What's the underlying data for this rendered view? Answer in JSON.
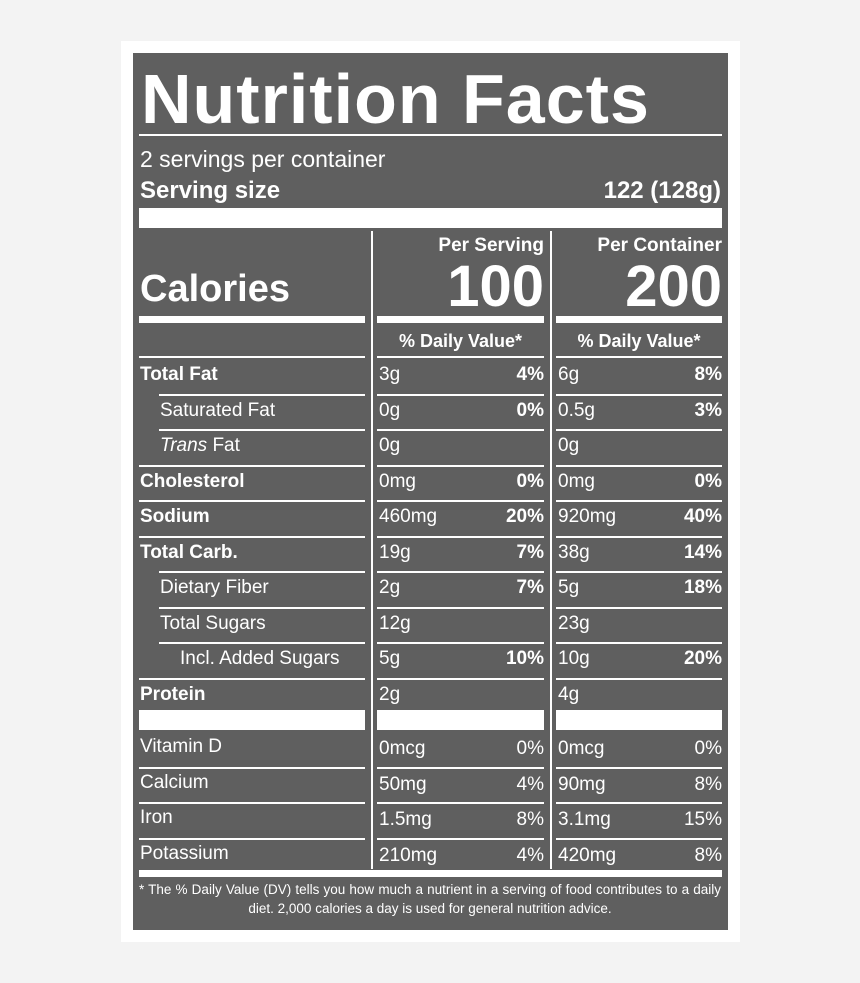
{
  "title": "Nutrition Facts",
  "servings_per_container": "2 servings per container",
  "serving_size": {
    "label": "Serving size",
    "value": "122 (128g)"
  },
  "calories": {
    "label": "Calories",
    "per_serving_header": "Per Serving",
    "per_container_header": "Per Container",
    "per_serving": "100",
    "per_container": "200"
  },
  "daily_value_header": "% Daily Value*",
  "nutrients": [
    {
      "name": "Total Fat",
      "bold": true,
      "indent": 0,
      "serving_amount": "3g",
      "serving_dv": "4%",
      "container_amount": "6g",
      "container_dv": "8%"
    },
    {
      "name": "Saturated Fat",
      "bold": false,
      "indent": 1,
      "serving_amount": "0g",
      "serving_dv": "0%",
      "container_amount": "0.5g",
      "container_dv": "3%"
    },
    {
      "name_italic": "Trans",
      "name": " Fat",
      "bold": false,
      "indent": 1,
      "serving_amount": "0g",
      "serving_dv": "",
      "container_amount": "0g",
      "container_dv": ""
    },
    {
      "name": "Cholesterol",
      "bold": true,
      "indent": 0,
      "serving_amount": "0mg",
      "serving_dv": "0%",
      "container_amount": "0mg",
      "container_dv": "0%"
    },
    {
      "name": "Sodium",
      "bold": true,
      "indent": 0,
      "serving_amount": "460mg",
      "serving_dv": "20%",
      "container_amount": "920mg",
      "container_dv": "40%"
    },
    {
      "name": "Total Carb.",
      "bold": true,
      "indent": 0,
      "serving_amount": "19g",
      "serving_dv": "7%",
      "container_amount": "38g",
      "container_dv": "14%"
    },
    {
      "name": "Dietary Fiber",
      "bold": false,
      "indent": 1,
      "serving_amount": "2g",
      "serving_dv": "7%",
      "container_amount": "5g",
      "container_dv": "18%"
    },
    {
      "name": "Total Sugars",
      "bold": false,
      "indent": 1,
      "serving_amount": "12g",
      "serving_dv": "",
      "container_amount": "23g",
      "container_dv": ""
    },
    {
      "name": "Incl. Added Sugars",
      "bold": false,
      "indent": 2,
      "serving_amount": "5g",
      "serving_dv": "10%",
      "container_amount": "10g",
      "container_dv": "20%"
    },
    {
      "name": "Protein",
      "bold": true,
      "indent": 0,
      "serving_amount": "2g",
      "serving_dv": "",
      "container_amount": "4g",
      "container_dv": ""
    }
  ],
  "vitamins": [
    {
      "name": "Vitamin D",
      "serving_amount": "0mcg",
      "serving_dv": "0%",
      "container_amount": "0mcg",
      "container_dv": "0%"
    },
    {
      "name": "Calcium",
      "serving_amount": "50mg",
      "serving_dv": "4%",
      "container_amount": "90mg",
      "container_dv": "8%"
    },
    {
      "name": "Iron",
      "serving_amount": "1.5mg",
      "serving_dv": "8%",
      "container_amount": "3.1mg",
      "container_dv": "15%"
    },
    {
      "name": "Potassium",
      "serving_amount": "210mg",
      "serving_dv": "4%",
      "container_amount": "420mg",
      "container_dv": "8%"
    }
  ],
  "footnote": "* The % Daily Value (DV) tells you how much a nutrient in a serving of food contributes to a daily diet. 2,000 calories a day is used for general nutrition advice.",
  "colors": {
    "panel": "#5f5f5f",
    "text": "#ffffff",
    "background": "#f3f3f3"
  }
}
